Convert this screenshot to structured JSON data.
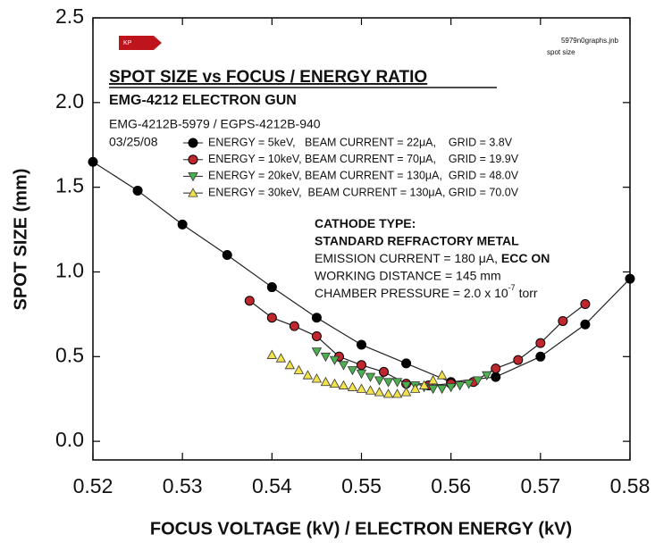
{
  "chart_data": {
    "type": "scatter",
    "title": "SPOT SIZE vs FOCUS / ENERGY RATIO",
    "subtitle": "EMG-4212 ELECTRON GUN",
    "model": "EMG-4212B-5979 / EGPS-4212B-940",
    "date": "03/25/08",
    "logo": "KP",
    "file_note": [
      "5979n0graphs.jnb",
      "spot size"
    ],
    "x_label": "FOCUS VOLTAGE (kV) / ELECTRON ENERGY (kV)",
    "y_label": "SPOT SIZE (mm)",
    "xlim": [
      0.52,
      0.58
    ],
    "xticks": [
      0.52,
      0.53,
      0.54,
      0.55,
      0.56,
      0.57,
      0.58
    ],
    "ylim": [
      -0.11,
      2.5
    ],
    "yticks": [
      {
        "value": 0,
        "label": "0.0"
      },
      0.5,
      {
        "value": 1,
        "label": "1.0"
      },
      1.5,
      {
        "value": 2,
        "label": "2.0"
      },
      2.5
    ],
    "grid": false,
    "series": [
      {
        "name": "ENERGY = 5keV,   BEAM CURRENT = 22μA,    GRID = 3.8V",
        "color": "#000000",
        "marker": "circle",
        "line": true,
        "x": [
          0.52,
          0.525,
          0.53,
          0.535,
          0.54,
          0.545,
          0.55,
          0.555,
          0.56,
          0.565,
          0.57,
          0.575,
          0.58
        ],
        "values": [
          1.65,
          1.48,
          1.28,
          1.1,
          0.91,
          0.73,
          0.57,
          0.46,
          0.35,
          0.38,
          0.5,
          0.69,
          0.96
        ]
      },
      {
        "name": "ENERGY = 10keV, BEAM CURRENT = 70μA,    GRID = 19.9V",
        "color": "#c0262d",
        "marker": "circle",
        "line": true,
        "x": [
          0.5375,
          0.54,
          0.5425,
          0.545,
          0.5475,
          0.55,
          0.5525,
          0.555,
          0.5575,
          0.56,
          0.5625,
          0.565,
          0.5675,
          0.57,
          0.5725,
          0.575
        ],
        "values": [
          0.83,
          0.73,
          0.68,
          0.62,
          0.5,
          0.45,
          0.41,
          0.34,
          0.33,
          0.34,
          0.35,
          0.43,
          0.48,
          0.58,
          0.71,
          0.81
        ]
      },
      {
        "name": "ENERGY = 20keV, BEAM CURRENT = 130μA,  GRID = 48.0V",
        "color": "#4caf50",
        "marker": "triangle-down",
        "line": false,
        "x": [
          0.545,
          0.546,
          0.547,
          0.548,
          0.549,
          0.55,
          0.551,
          0.552,
          0.553,
          0.554,
          0.555,
          0.556,
          0.557,
          0.558,
          0.559,
          0.56,
          0.561,
          0.562,
          0.563,
          0.564
        ],
        "values": [
          0.53,
          0.5,
          0.48,
          0.45,
          0.42,
          0.4,
          0.38,
          0.36,
          0.35,
          0.35,
          0.33,
          0.33,
          0.32,
          0.31,
          0.31,
          0.32,
          0.33,
          0.34,
          0.36,
          0.39
        ]
      },
      {
        "name": "ENERGY = 30keV,  BEAM CURRENT = 130μA, GRID = 70.0V",
        "color": "#f2e24c",
        "marker": "triangle-up",
        "line": false,
        "x": [
          0.54,
          0.541,
          0.542,
          0.543,
          0.544,
          0.545,
          0.546,
          0.547,
          0.548,
          0.549,
          0.55,
          0.551,
          0.552,
          0.553,
          0.554,
          0.555,
          0.556,
          0.557,
          0.558,
          0.559
        ],
        "values": [
          0.51,
          0.49,
          0.45,
          0.42,
          0.39,
          0.37,
          0.35,
          0.34,
          0.33,
          0.32,
          0.31,
          0.3,
          0.29,
          0.28,
          0.28,
          0.29,
          0.31,
          0.33,
          0.36,
          0.39
        ]
      }
    ],
    "annotation": [
      [
        {
          "text": "CATHODE TYPE:",
          "bold": true
        }
      ],
      [
        {
          "text": "STANDARD REFRACTORY METAL",
          "bold": true
        }
      ],
      [
        {
          "text": "EMISSION CURRENT = 180 μA, ",
          "bold": false
        },
        {
          "text": "ECC ON",
          "bold": true
        }
      ],
      [
        {
          "text": "WORKING DISTANCE = 145 mm",
          "bold": false
        }
      ],
      [
        {
          "text": "CHAMBER PRESSURE = 2.0 x 10",
          "bold": false
        },
        {
          "text": "-7",
          "bold": false,
          "sup": true
        },
        {
          "text": " torr",
          "bold": false
        }
      ]
    ]
  }
}
